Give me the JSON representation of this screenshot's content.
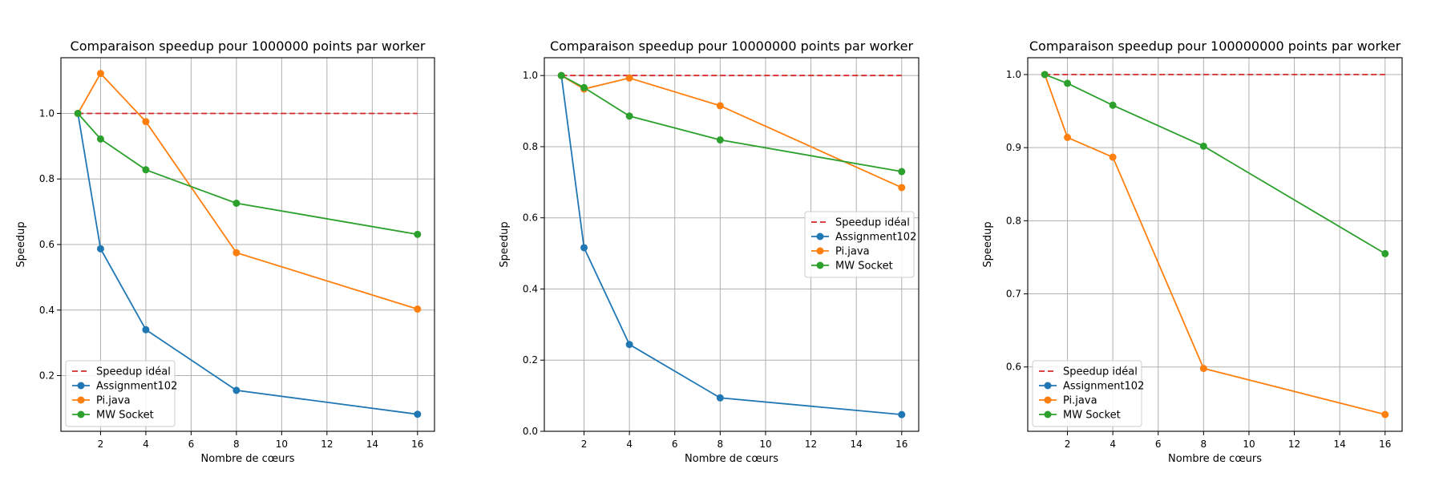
{
  "figure": {
    "chart_data": [
      {
        "type": "line",
        "title": "Comparaison speedup pour 1000000 points par worker",
        "xlabel": "Nombre de cœurs",
        "ylabel": "Speedup",
        "xlim": [
          0.25,
          16.75
        ],
        "ylim": [
          0.03,
          1.17
        ],
        "xticks": [
          2,
          4,
          6,
          8,
          10,
          12,
          14,
          16
        ],
        "yticks": [
          0.2,
          0.4,
          0.6,
          0.8,
          1.0
        ],
        "grid": true,
        "legend_position": "lower left",
        "series": [
          {
            "name": "Speedup idéal",
            "color": "#d62728",
            "style": "dashed",
            "marker": "none",
            "x": [
              1,
              16
            ],
            "y": [
              1.0,
              1.0
            ]
          },
          {
            "name": "Assignment102",
            "color": "#1f77b4",
            "style": "solid",
            "marker": "circle",
            "x": [
              1,
              2,
              4,
              8,
              16
            ],
            "y": [
              1.0,
              0.587,
              0.34,
              0.155,
              0.082
            ]
          },
          {
            "name": "Pi.java",
            "color": "#ff7f0e",
            "style": "solid",
            "marker": "circle",
            "x": [
              1,
              2,
              4,
              8,
              16
            ],
            "y": [
              1.0,
              1.122,
              0.975,
              0.575,
              0.403
            ]
          },
          {
            "name": "MW Socket",
            "color": "#2ca02c",
            "style": "solid",
            "marker": "circle",
            "x": [
              1,
              2,
              4,
              8,
              16
            ],
            "y": [
              1.0,
              0.922,
              0.828,
              0.726,
              0.631
            ]
          }
        ]
      },
      {
        "type": "line",
        "title": "Comparaison speedup pour 10000000 points par worker",
        "xlabel": "Nombre de cœurs",
        "ylabel": "Speedup",
        "xlim": [
          0.25,
          16.75
        ],
        "ylim": [
          0.0,
          1.05
        ],
        "xticks": [
          2,
          4,
          6,
          8,
          10,
          12,
          14,
          16
        ],
        "yticks": [
          0.0,
          0.2,
          0.4,
          0.6,
          0.8,
          1.0
        ],
        "grid": true,
        "legend_position": "center right",
        "series": [
          {
            "name": "Speedup idéal",
            "color": "#d62728",
            "style": "dashed",
            "marker": "none",
            "x": [
              1,
              16
            ],
            "y": [
              1.0,
              1.0
            ]
          },
          {
            "name": "Assignment102",
            "color": "#1f77b4",
            "style": "solid",
            "marker": "circle",
            "x": [
              1,
              2,
              4,
              8,
              16
            ],
            "y": [
              1.0,
              0.516,
              0.244,
              0.094,
              0.047
            ]
          },
          {
            "name": "Pi.java",
            "color": "#ff7f0e",
            "style": "solid",
            "marker": "circle",
            "x": [
              1,
              2,
              4,
              8,
              16
            ],
            "y": [
              1.0,
              0.962,
              0.993,
              0.915,
              0.685
            ]
          },
          {
            "name": "MW Socket",
            "color": "#2ca02c",
            "style": "solid",
            "marker": "circle",
            "x": [
              1,
              2,
              4,
              8,
              16
            ],
            "y": [
              1.0,
              0.966,
              0.886,
              0.819,
              0.73
            ]
          }
        ]
      },
      {
        "type": "line",
        "title": "Comparaison speedup pour 100000000 points par worker",
        "xlabel": "Nombre de cœurs",
        "ylabel": "Speedup",
        "xlim": [
          0.25,
          16.75
        ],
        "ylim": [
          0.512,
          1.023
        ],
        "xticks": [
          2,
          4,
          6,
          8,
          10,
          12,
          14,
          16
        ],
        "yticks": [
          0.6,
          0.7,
          0.8,
          0.9,
          1.0
        ],
        "grid": true,
        "legend_position": "lower left",
        "series": [
          {
            "name": "Speedup idéal",
            "color": "#d62728",
            "style": "dashed",
            "marker": "none",
            "x": [
              1,
              16
            ],
            "y": [
              1.0,
              1.0
            ]
          },
          {
            "name": "Assignment102",
            "color": "#1f77b4",
            "style": "solid",
            "marker": "circle",
            "x": [],
            "y": []
          },
          {
            "name": "Pi.java",
            "color": "#ff7f0e",
            "style": "solid",
            "marker": "circle",
            "x": [
              1,
              2,
              4,
              8,
              16
            ],
            "y": [
              1.0,
              0.914,
              0.887,
              0.598,
              0.535
            ]
          },
          {
            "name": "MW Socket",
            "color": "#2ca02c",
            "style": "solid",
            "marker": "circle",
            "x": [
              1,
              2,
              4,
              8,
              16
            ],
            "y": [
              1.0,
              0.988,
              0.958,
              0.902,
              0.755
            ]
          }
        ]
      }
    ]
  }
}
